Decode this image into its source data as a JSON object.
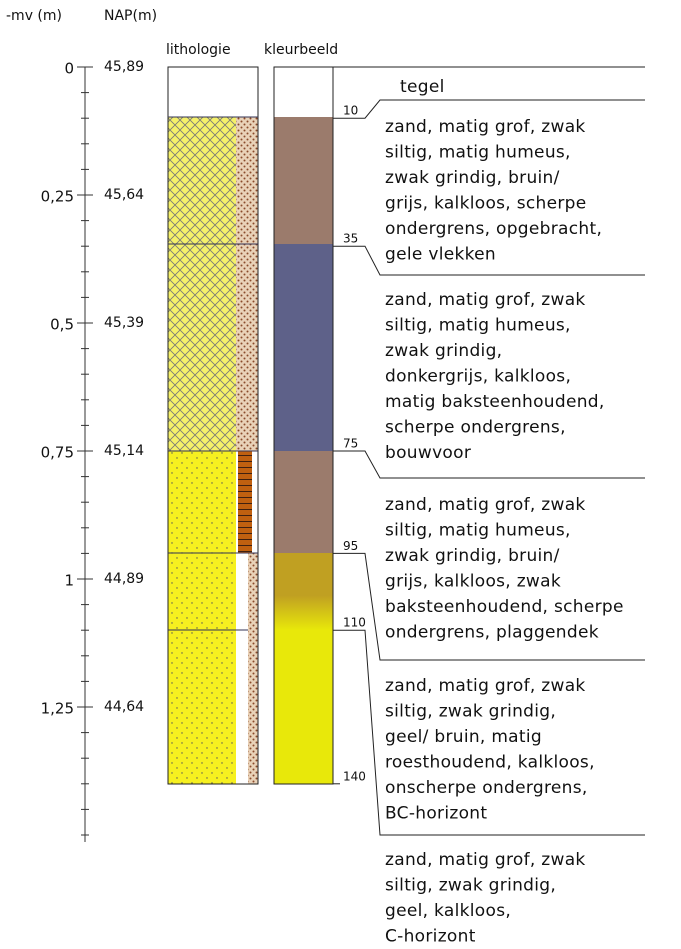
{
  "header": {
    "mv": "-mv (m)",
    "nap": "NAP(m)",
    "lithology": "lithologie",
    "colour": "kleurbeeld"
  },
  "scale": [
    {
      "mv": "0",
      "nap": "45,89"
    },
    {
      "mv": "0,25",
      "nap": "45,64"
    },
    {
      "mv": "0,5",
      "nap": "45,39"
    },
    {
      "mv": "0,75",
      "nap": "45,14"
    },
    {
      "mv": "1",
      "nap": "44,89"
    },
    {
      "mv": "1,25",
      "nap": "44,64"
    }
  ],
  "boundaries": [
    "10",
    "35",
    "75",
    "95",
    "110",
    "140"
  ],
  "layers": [
    [
      "tegel"
    ],
    [
      "zand, matig grof, zwak",
      "siltig, matig humeus,",
      "zwak grindig, bruin/",
      "grijs, kalkloos, scherpe",
      "ondergrens, opgebracht,",
      "gele vlekken"
    ],
    [
      "zand, matig grof, zwak",
      "siltig, matig humeus,",
      "zwak grindig,",
      "donkergrijs, kalkloos,",
      "matig baksteenhoudend,",
      "scherpe ondergrens,",
      "bouwvoor"
    ],
    [
      "zand, matig grof, zwak",
      "siltig, matig humeus,",
      "zwak grindig, bruin/",
      "grijs, kalkloos, zwak",
      "baksteenhoudend, scherpe",
      "ondergrens, plaggendek"
    ],
    [
      "zand, matig grof, zwak",
      "siltig, zwak grindig,",
      "geel/ bruin, matig",
      "roesthoudend, kalkloos,",
      "onscherpe ondergrens,",
      "BC-horizont"
    ],
    [
      "zand, matig grof, zwak",
      "siltig, zwak grindig,",
      "geel, kalkloos,",
      "C-horizont"
    ]
  ]
}
